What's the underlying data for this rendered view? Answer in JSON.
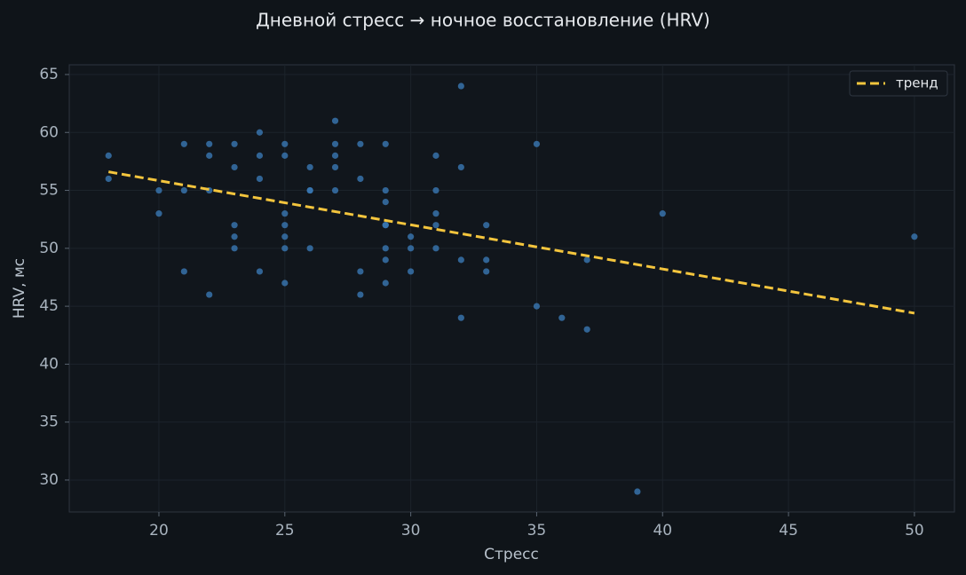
{
  "chart_data": {
    "type": "scatter",
    "title": "Дневной стресс → ночное восстановление (HRV)",
    "xlabel": "Стресс",
    "ylabel": "HRV, мс",
    "xlim": [
      16.44,
      51.59
    ],
    "ylim": [
      27.24,
      65.84
    ],
    "xticks": [
      20,
      25,
      30,
      35,
      40,
      45,
      50
    ],
    "yticks": [
      30,
      35,
      40,
      45,
      50,
      55,
      60,
      65
    ],
    "grid": true,
    "legend": "upper right",
    "series": [
      {
        "color": "#3a78b4",
        "x": [
          18,
          18,
          20,
          20,
          21,
          21,
          21,
          22,
          22,
          22,
          22,
          23,
          23,
          23,
          23,
          23,
          24,
          24,
          24,
          24,
          25,
          25,
          25,
          25,
          25,
          25,
          25,
          26,
          26,
          26,
          26,
          27,
          27,
          27,
          27,
          27,
          28,
          28,
          28,
          28,
          29,
          29,
          29,
          29,
          29,
          29,
          29,
          29,
          30,
          30,
          30,
          31,
          31,
          31,
          31,
          31,
          32,
          32,
          32,
          32,
          33,
          33,
          33,
          35,
          35,
          36,
          37,
          37,
          39,
          40,
          50
        ],
        "y": [
          58,
          56,
          55,
          53,
          59,
          55,
          48,
          59,
          58,
          55,
          46,
          59,
          57,
          52,
          51,
          50,
          60,
          58,
          56,
          48,
          59,
          58,
          53,
          52,
          51,
          50,
          47,
          57,
          55,
          55,
          50,
          61,
          59,
          58,
          57,
          55,
          59,
          56,
          48,
          46,
          59,
          55,
          54,
          52,
          52,
          50,
          49,
          47,
          51,
          50,
          48,
          58,
          55,
          53,
          52,
          50,
          64,
          57,
          49,
          44,
          52,
          49,
          48,
          59,
          45,
          44,
          49,
          43,
          29,
          53,
          51
        ]
      },
      {
        "type": "line",
        "name": "тренд",
        "color": "#f4c53d",
        "x": [
          18,
          50
        ],
        "y": [
          56.6,
          44.4
        ]
      }
    ]
  }
}
